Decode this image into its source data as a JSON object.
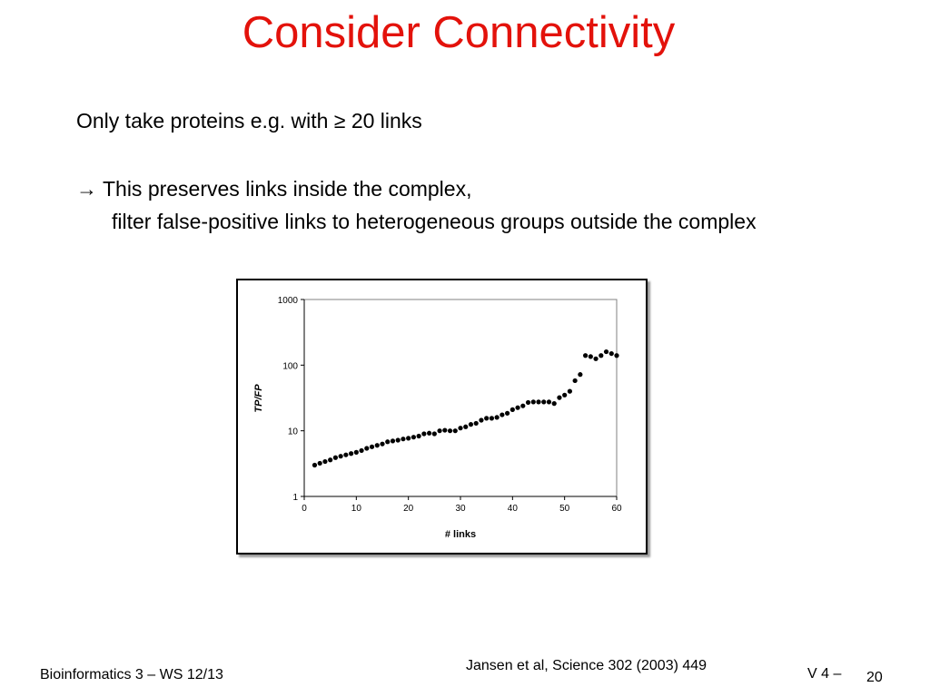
{
  "slide": {
    "title": "Consider Connectivity",
    "bullet_1": "Only take proteins e.g. with ≥ 20 links",
    "bullet_2": "→ This preserves links inside the complex,",
    "bullet_3": "filter false-positive links to heterogeneous groups outside the complex"
  },
  "footer": {
    "course": "Bioinformatics 3 – WS 12/13",
    "citation": "Jansen et al, Science 302 (2003) 449",
    "version": "V 4 –",
    "page": "20"
  },
  "colors": {
    "title": "#e3120b",
    "points": "#000000",
    "frame": "#000000"
  },
  "chart_data": {
    "type": "scatter",
    "xlabel": "# links",
    "ylabel": "TP/FP",
    "xlim": [
      0,
      60
    ],
    "ylim": [
      1,
      1000
    ],
    "yscale": "log",
    "xticks": [
      "0",
      "10",
      "20",
      "30",
      "40",
      "50",
      "60"
    ],
    "yticks": [
      "1",
      "10",
      "100",
      "1000"
    ],
    "grid": false,
    "series": [
      {
        "x": [
          2,
          3,
          4,
          5,
          6,
          7,
          8,
          9,
          10,
          11,
          12,
          13,
          14,
          15,
          16,
          17,
          18,
          19,
          20,
          21,
          22,
          23,
          24,
          25,
          26,
          27,
          28,
          29,
          30,
          31,
          32,
          33,
          34,
          35,
          36,
          37,
          38,
          39,
          40,
          41,
          42,
          43,
          44,
          45,
          46,
          47,
          48,
          49,
          50,
          51,
          52,
          53,
          54,
          55,
          56,
          57,
          58,
          59,
          60
        ],
        "y": [
          3.0,
          3.2,
          3.4,
          3.6,
          3.9,
          4.1,
          4.3,
          4.5,
          4.7,
          5.0,
          5.4,
          5.7,
          6.0,
          6.3,
          6.8,
          7.0,
          7.2,
          7.5,
          7.7,
          8.0,
          8.3,
          9.0,
          9.2,
          9.0,
          10.0,
          10.2,
          10.0,
          10.0,
          11.0,
          11.5,
          12.5,
          13.0,
          14.5,
          15.5,
          15.5,
          16.0,
          17.5,
          18.5,
          21.0,
          22.5,
          24.0,
          27.0,
          27.5,
          27.5,
          27.5,
          27.5,
          26.0,
          32.0,
          35.0,
          40.0,
          58.0,
          72.0,
          140.0,
          135.0,
          125.0,
          140.0,
          160.0,
          150.0,
          140.0
        ]
      }
    ]
  }
}
